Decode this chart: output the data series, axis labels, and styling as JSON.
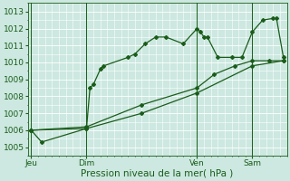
{
  "bg_color": "#cce8e0",
  "plot_bg_color": "#cce8e0",
  "grid_color": "#b8d8d0",
  "line_color": "#1a5c1a",
  "marker_color": "#1a5c1a",
  "xlabel": "Pression niveau de la mer( hPa )",
  "xlabel_fontsize": 7.5,
  "tick_fontsize": 6.5,
  "ylim": [
    1004.5,
    1013.5
  ],
  "yticks": [
    1005,
    1006,
    1007,
    1008,
    1009,
    1010,
    1011,
    1012,
    1013
  ],
  "xtick_labels": [
    "Jeu",
    "Dim",
    "Ven",
    "Sam"
  ],
  "xtick_positions": [
    0,
    16,
    48,
    64
  ],
  "vlines": [
    0,
    16,
    48,
    64
  ],
  "xlim": [
    -1,
    74
  ],
  "series1_x": [
    0,
    3,
    16,
    17,
    18,
    20,
    21,
    28,
    30,
    33,
    36,
    39,
    44,
    48,
    49,
    50,
    51,
    54,
    58,
    61,
    64,
    67,
    70,
    71,
    73
  ],
  "series1_y": [
    1006.0,
    1005.3,
    1006.1,
    1008.5,
    1008.7,
    1009.6,
    1009.8,
    1010.3,
    1010.5,
    1011.1,
    1011.5,
    1011.5,
    1011.1,
    1012.0,
    1011.8,
    1011.5,
    1011.5,
    1010.3,
    1010.3,
    1010.3,
    1011.8,
    1012.5,
    1012.6,
    1012.6,
    1010.3
  ],
  "series2_x": [
    0,
    16,
    32,
    48,
    53,
    59,
    64,
    69,
    73
  ],
  "series2_y": [
    1006.0,
    1006.2,
    1007.5,
    1008.5,
    1009.3,
    1009.8,
    1010.1,
    1010.1,
    1010.1
  ],
  "series3_x": [
    0,
    16,
    32,
    48,
    64,
    73
  ],
  "series3_y": [
    1006.0,
    1006.1,
    1007.0,
    1008.2,
    1009.8,
    1010.1
  ]
}
